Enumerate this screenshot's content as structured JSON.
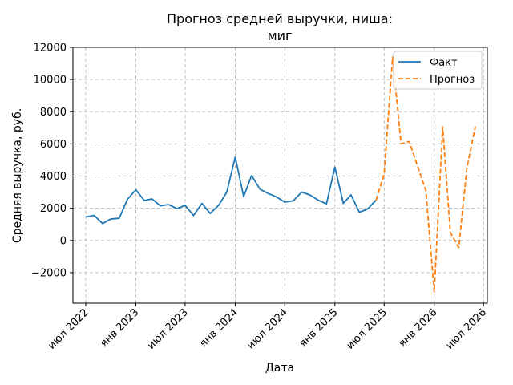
{
  "chart_data": {
    "type": "line",
    "title_line1": "Прогноз средней выручки, ниша:",
    "title_line2": "миг",
    "xlabel": "Дата",
    "ylabel": "Средняя выручка, руб.",
    "ylim": [
      -3900,
      12000
    ],
    "xlim": [
      "2022-05-15",
      "2026-07-15"
    ],
    "grid": true,
    "legend_position": "top-right",
    "y_ticks": [
      -2000,
      0,
      2000,
      4000,
      6000,
      8000,
      10000,
      12000
    ],
    "y_tick_labels": [
      "−2000",
      "0",
      "2000",
      "4000",
      "6000",
      "8000",
      "10000",
      "12000"
    ],
    "x_ticks": [
      "2022-07-01",
      "2023-01-01",
      "2023-07-01",
      "2024-01-01",
      "2024-07-01",
      "2025-01-01",
      "2025-07-01",
      "2026-01-01",
      "2026-07-01"
    ],
    "x_tick_labels": [
      "июл 2022",
      "янв 2023",
      "июл 2023",
      "янв 2024",
      "июл 2024",
      "янв 2025",
      "июл 2025",
      "янв 2026",
      "июл 2026"
    ],
    "series": [
      {
        "name": "Факт",
        "style": "solid",
        "color": "#1f77b4",
        "points": [
          [
            "2022-07-01",
            1450
          ],
          [
            "2022-08-01",
            1550
          ],
          [
            "2022-09-01",
            1050
          ],
          [
            "2022-10-01",
            1330
          ],
          [
            "2022-11-01",
            1380
          ],
          [
            "2022-12-01",
            2550
          ],
          [
            "2023-01-01",
            3150
          ],
          [
            "2023-02-01",
            2480
          ],
          [
            "2023-03-01",
            2580
          ],
          [
            "2023-04-01",
            2150
          ],
          [
            "2023-05-01",
            2230
          ],
          [
            "2023-06-01",
            1980
          ],
          [
            "2023-07-01",
            2180
          ],
          [
            "2023-08-01",
            1550
          ],
          [
            "2023-09-01",
            2300
          ],
          [
            "2023-10-01",
            1680
          ],
          [
            "2023-11-01",
            2180
          ],
          [
            "2023-12-01",
            3000
          ],
          [
            "2024-01-01",
            5180
          ],
          [
            "2024-02-01",
            2720
          ],
          [
            "2024-03-01",
            4030
          ],
          [
            "2024-04-01",
            3180
          ],
          [
            "2024-05-01",
            2920
          ],
          [
            "2024-06-01",
            2700
          ],
          [
            "2024-07-01",
            2380
          ],
          [
            "2024-08-01",
            2460
          ],
          [
            "2024-09-01",
            3000
          ],
          [
            "2024-10-01",
            2830
          ],
          [
            "2024-11-01",
            2500
          ],
          [
            "2024-12-01",
            2270
          ],
          [
            "2025-01-01",
            4560
          ],
          [
            "2025-02-01",
            2300
          ],
          [
            "2025-03-01",
            2830
          ],
          [
            "2025-04-01",
            1750
          ],
          [
            "2025-05-01",
            1950
          ],
          [
            "2025-06-01",
            2500
          ]
        ]
      },
      {
        "name": "Прогноз",
        "style": "dashed",
        "color": "#ff7f0e",
        "points": [
          [
            "2025-06-01",
            2500
          ],
          [
            "2025-07-01",
            4100
          ],
          [
            "2025-08-01",
            11400
          ],
          [
            "2025-09-01",
            6000
          ],
          [
            "2025-10-01",
            6150
          ],
          [
            "2025-11-01",
            4600
          ],
          [
            "2025-12-01",
            3100
          ],
          [
            "2026-01-01",
            -3200
          ],
          [
            "2026-02-01",
            7050
          ],
          [
            "2026-03-01",
            500
          ],
          [
            "2026-04-01",
            -450
          ],
          [
            "2026-05-01",
            4500
          ],
          [
            "2026-06-01",
            7100
          ]
        ]
      }
    ]
  }
}
